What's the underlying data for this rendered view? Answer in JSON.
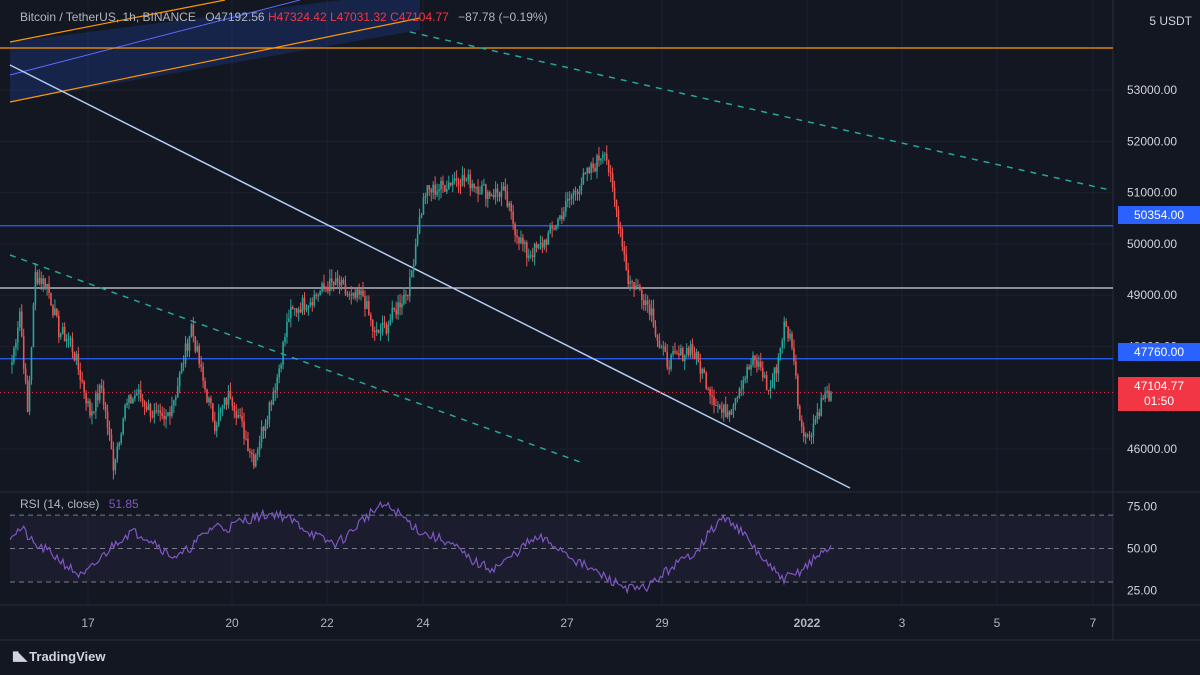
{
  "header": {
    "symbol": "Bitcoin / TetherUS, 1h, BINANCE",
    "open": "O47192.56",
    "high": "H47324.42",
    "low": "L47031.32",
    "close": "C47104.77",
    "change": "−87.78 (−0.19%)"
  },
  "currency_label": "5 USDT",
  "rsi_panel": {
    "label": "RSI (14, close)",
    "value": "51.85"
  },
  "price_badges": {
    "upper_level": "50354.00",
    "lower_level": "47760.00",
    "last_price": "47104.77",
    "countdown": "01:50"
  },
  "colors": {
    "background": "#131722",
    "up": "#26a69a",
    "down": "#ef5350",
    "level_line": "#2962ff",
    "rsi_line": "#7e57c2",
    "trend_line": "#b3cdf5",
    "dashed_trend": "#26a69a",
    "orange_channel": "#ff9800"
  },
  "brand": "TradingView",
  "chart_data": [
    {
      "type": "candlestick",
      "panel": "price",
      "y_ticks": [
        53000,
        52000,
        51000,
        50000,
        49000,
        48000,
        46000
      ],
      "y_tick_labels": [
        "53000.00",
        "52000.00",
        "51000.00",
        "50000.00",
        "49000.00",
        "48000.00",
        "46000.00"
      ],
      "ylim": [
        45200,
        54600
      ],
      "x_ticks": [
        "17",
        "20",
        "22",
        "24",
        "27",
        "29",
        "2022",
        "3",
        "5",
        "7"
      ],
      "horizontal_levels": [
        {
          "price": 50354,
          "color": "#2962ff"
        },
        {
          "price": 47760,
          "color": "#2962ff"
        },
        {
          "price": 49140,
          "color": "#d1d4dc"
        },
        {
          "price": 53820,
          "color": "#ff9800"
        }
      ],
      "last_price": 47104.77,
      "anchors": [
        [
          0,
          47700
        ],
        [
          4,
          48700
        ],
        [
          8,
          46700
        ],
        [
          12,
          49400
        ],
        [
          18,
          49200
        ],
        [
          24,
          48300
        ],
        [
          30,
          48100
        ],
        [
          36,
          47300
        ],
        [
          40,
          46700
        ],
        [
          46,
          47200
        ],
        [
          52,
          45700
        ],
        [
          58,
          46800
        ],
        [
          64,
          47100
        ],
        [
          72,
          46700
        ],
        [
          78,
          46500
        ],
        [
          84,
          47100
        ],
        [
          92,
          48400
        ],
        [
          98,
          47300
        ],
        [
          104,
          46500
        ],
        [
          112,
          47100
        ],
        [
          120,
          46200
        ],
        [
          124,
          45800
        ],
        [
          130,
          46600
        ],
        [
          136,
          47400
        ],
        [
          142,
          48600
        ],
        [
          148,
          48800
        ],
        [
          156,
          49000
        ],
        [
          162,
          49200
        ],
        [
          168,
          49200
        ],
        [
          174,
          48900
        ],
        [
          180,
          49000
        ],
        [
          186,
          48200
        ],
        [
          192,
          48400
        ],
        [
          198,
          48800
        ],
        [
          204,
          49200
        ],
        [
          208,
          50300
        ],
        [
          212,
          51000
        ],
        [
          220,
          51100
        ],
        [
          228,
          51300
        ],
        [
          236,
          51200
        ],
        [
          244,
          51000
        ],
        [
          252,
          51000
        ],
        [
          258,
          50300
        ],
        [
          264,
          49800
        ],
        [
          270,
          49900
        ],
        [
          276,
          50200
        ],
        [
          282,
          50600
        ],
        [
          288,
          51000
        ],
        [
          294,
          51300
        ],
        [
          300,
          51600
        ],
        [
          304,
          51900
        ],
        [
          308,
          51000
        ],
        [
          312,
          50300
        ],
        [
          316,
          49300
        ],
        [
          322,
          49100
        ],
        [
          328,
          48700
        ],
        [
          332,
          48000
        ],
        [
          336,
          47700
        ],
        [
          342,
          47800
        ],
        [
          348,
          48000
        ],
        [
          354,
          47500
        ],
        [
          360,
          47000
        ],
        [
          364,
          46700
        ],
        [
          368,
          46800
        ],
        [
          374,
          47300
        ],
        [
          380,
          47700
        ],
        [
          384,
          47600
        ],
        [
          388,
          47100
        ],
        [
          392,
          47600
        ],
        [
          396,
          48400
        ],
        [
          400,
          48100
        ],
        [
          404,
          46600
        ],
        [
          408,
          46200
        ],
        [
          412,
          46600
        ],
        [
          416,
          47000
        ],
        [
          420,
          47100
        ]
      ],
      "total_hours": 421
    },
    {
      "type": "line",
      "panel": "rsi",
      "series": [
        {
          "name": "RSI (14, close)"
        }
      ],
      "y_ticks": [
        75,
        50,
        25
      ],
      "y_tick_labels": [
        "75.00",
        "50.00",
        "25.00"
      ],
      "ylim": [
        18,
        82
      ],
      "bands": [
        70,
        50,
        30
      ],
      "values": [
        58,
        62,
        52,
        49,
        44,
        38,
        33,
        40,
        48,
        55,
        60,
        58,
        54,
        47,
        45,
        51,
        58,
        64,
        62,
        66,
        68,
        70,
        71,
        68,
        64,
        59,
        55,
        53,
        58,
        66,
        72,
        76,
        72,
        66,
        60,
        57,
        55,
        50,
        44,
        40,
        38,
        42,
        48,
        54,
        56,
        52,
        48,
        42,
        38,
        34,
        30,
        27,
        25,
        28,
        34,
        40,
        44,
        50,
        60,
        68,
        65,
        56,
        47,
        38,
        32,
        34,
        40,
        46,
        51
      ]
    }
  ]
}
